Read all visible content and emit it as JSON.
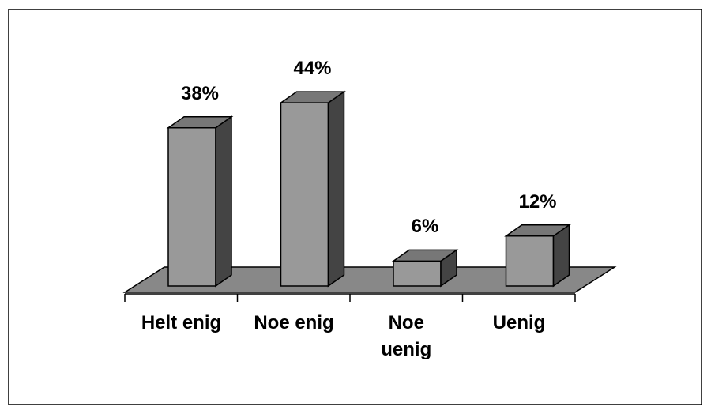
{
  "chart_data": {
    "type": "bar3d",
    "categories": [
      "Helt enig",
      "Noe enig",
      "Noe uenig",
      "Uenig"
    ],
    "values": [
      38,
      44,
      6,
      12
    ],
    "value_labels": [
      "38%",
      "44%",
      "6%",
      "12%"
    ],
    "color": "#999999"
  }
}
